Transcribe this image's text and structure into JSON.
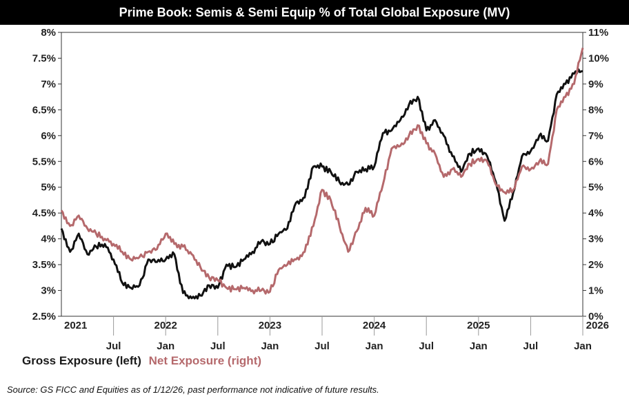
{
  "title": "Prime Book: Semis & Semi Equip % of Total Global Exposure (MV)",
  "legend": {
    "gross": "Gross Exposure (left)",
    "net": "Net Exposure (right)"
  },
  "source": "Source: GS FICC and Equities as of 1/12/26, past performance not indicative of future results.",
  "colors": {
    "gross": "#111111",
    "net": "#b5696c"
  },
  "chart_data": {
    "type": "line",
    "x_range": [
      "2021-01",
      "2026-01"
    ],
    "x_tick_labels": [
      "Jul",
      "Jan",
      "Jul",
      "Jan",
      "Jul",
      "Jan",
      "Jul",
      "Jan",
      "Jul",
      "Jan"
    ],
    "x_tick_dates": [
      "2021-07",
      "2022-01",
      "2022-07",
      "2023-01",
      "2023-07",
      "2024-01",
      "2024-07",
      "2025-01",
      "2025-07",
      "2026-01"
    ],
    "year_labels": [
      "2021",
      "2022",
      "2023",
      "2024",
      "2025",
      "2026"
    ],
    "year_dates": [
      "2021-01",
      "2022-01",
      "2023-01",
      "2024-01",
      "2025-01",
      "2026-01"
    ],
    "y_left": {
      "min": 2.5,
      "max": 8,
      "ticks": [
        "2.5%",
        "3%",
        "3.5%",
        "4%",
        "4.5%",
        "5%",
        "5.5%",
        "6%",
        "6.5%",
        "7%",
        "7.5%",
        "8%"
      ]
    },
    "y_right": {
      "min": 0,
      "max": 11,
      "ticks": [
        "0%",
        "1%",
        "2%",
        "3%",
        "4%",
        "5%",
        "6%",
        "7%",
        "8%",
        "9%",
        "10%",
        "11%"
      ]
    },
    "series": [
      {
        "name": "Gross Exposure (left)",
        "axis": "left",
        "points": [
          [
            "2021-01",
            4.2
          ],
          [
            "2021-02",
            3.75
          ],
          [
            "2021-03",
            4.1
          ],
          [
            "2021-04",
            3.7
          ],
          [
            "2021-05",
            3.85
          ],
          [
            "2021-06",
            3.9
          ],
          [
            "2021-07",
            3.6
          ],
          [
            "2021-08",
            3.15
          ],
          [
            "2021-09",
            3.05
          ],
          [
            "2021-10",
            3.1
          ],
          [
            "2021-11",
            3.6
          ],
          [
            "2021-12",
            3.55
          ],
          [
            "2022-01",
            3.6
          ],
          [
            "2022-02",
            3.7
          ],
          [
            "2022-03",
            2.95
          ],
          [
            "2022-04",
            2.85
          ],
          [
            "2022-05",
            2.9
          ],
          [
            "2022-06",
            3.1
          ],
          [
            "2022-07",
            3.05
          ],
          [
            "2022-08",
            3.5
          ],
          [
            "2022-09",
            3.45
          ],
          [
            "2022-10",
            3.6
          ],
          [
            "2022-11",
            3.75
          ],
          [
            "2022-12",
            3.95
          ],
          [
            "2023-01",
            3.9
          ],
          [
            "2023-02",
            4.1
          ],
          [
            "2023-03",
            4.2
          ],
          [
            "2023-04",
            4.7
          ],
          [
            "2023-05",
            4.8
          ],
          [
            "2023-06",
            5.4
          ],
          [
            "2023-07",
            5.4
          ],
          [
            "2023-08",
            5.3
          ],
          [
            "2023-09",
            5.1
          ],
          [
            "2023-10",
            5.05
          ],
          [
            "2023-11",
            5.3
          ],
          [
            "2023-12",
            5.35
          ],
          [
            "2024-01",
            5.4
          ],
          [
            "2024-02",
            6.05
          ],
          [
            "2024-03",
            6.1
          ],
          [
            "2024-04",
            6.3
          ],
          [
            "2024-05",
            6.6
          ],
          [
            "2024-06",
            6.75
          ],
          [
            "2024-07",
            6.1
          ],
          [
            "2024-08",
            6.3
          ],
          [
            "2024-09",
            6.0
          ],
          [
            "2024-10",
            5.6
          ],
          [
            "2024-11",
            5.3
          ],
          [
            "2024-12",
            5.65
          ],
          [
            "2025-01",
            5.75
          ],
          [
            "2025-02",
            5.6
          ],
          [
            "2025-03",
            5.1
          ],
          [
            "2025-04",
            4.35
          ],
          [
            "2025-05",
            4.9
          ],
          [
            "2025-06",
            5.6
          ],
          [
            "2025-07",
            5.7
          ],
          [
            "2025-08",
            6.0
          ],
          [
            "2025-09",
            5.9
          ],
          [
            "2025-10",
            6.8
          ],
          [
            "2025-11",
            7.0
          ],
          [
            "2025-12",
            7.2
          ],
          [
            "2026-01",
            7.25
          ]
        ]
      },
      {
        "name": "Net Exposure (right)",
        "axis": "right",
        "points": [
          [
            "2021-01",
            4.1
          ],
          [
            "2021-02",
            3.5
          ],
          [
            "2021-03",
            3.9
          ],
          [
            "2021-04",
            3.4
          ],
          [
            "2021-05",
            3.2
          ],
          [
            "2021-06",
            3.0
          ],
          [
            "2021-07",
            2.8
          ],
          [
            "2021-08",
            2.5
          ],
          [
            "2021-09",
            2.2
          ],
          [
            "2021-10",
            2.3
          ],
          [
            "2021-11",
            2.5
          ],
          [
            "2021-12",
            2.6
          ],
          [
            "2022-01",
            3.2
          ],
          [
            "2022-02",
            2.8
          ],
          [
            "2022-03",
            2.7
          ],
          [
            "2022-04",
            2.4
          ],
          [
            "2022-05",
            1.9
          ],
          [
            "2022-06",
            1.5
          ],
          [
            "2022-07",
            1.4
          ],
          [
            "2022-08",
            1.1
          ],
          [
            "2022-09",
            1.05
          ],
          [
            "2022-10",
            1.1
          ],
          [
            "2022-11",
            1.0
          ],
          [
            "2022-12",
            1.0
          ],
          [
            "2023-01",
            0.95
          ],
          [
            "2023-02",
            1.8
          ],
          [
            "2023-03",
            2.0
          ],
          [
            "2023-04",
            2.2
          ],
          [
            "2023-05",
            2.5
          ],
          [
            "2023-06",
            3.5
          ],
          [
            "2023-07",
            4.9
          ],
          [
            "2023-08",
            4.5
          ],
          [
            "2023-09",
            3.5
          ],
          [
            "2023-10",
            2.5
          ],
          [
            "2023-11",
            3.3
          ],
          [
            "2023-12",
            4.2
          ],
          [
            "2024-01",
            3.9
          ],
          [
            "2024-02",
            5.1
          ],
          [
            "2024-03",
            6.5
          ],
          [
            "2024-04",
            6.6
          ],
          [
            "2024-05",
            7.0
          ],
          [
            "2024-06",
            7.4
          ],
          [
            "2024-07",
            6.7
          ],
          [
            "2024-08",
            6.3
          ],
          [
            "2024-09",
            5.4
          ],
          [
            "2024-10",
            5.7
          ],
          [
            "2024-11",
            5.4
          ],
          [
            "2024-12",
            5.9
          ],
          [
            "2025-01",
            6.1
          ],
          [
            "2025-02",
            6.0
          ],
          [
            "2025-03",
            5.1
          ],
          [
            "2025-04",
            4.8
          ],
          [
            "2025-05",
            4.9
          ],
          [
            "2025-06",
            5.8
          ],
          [
            "2025-07",
            5.7
          ],
          [
            "2025-08",
            6.0
          ],
          [
            "2025-09",
            5.9
          ],
          [
            "2025-10",
            8.0
          ],
          [
            "2025-11",
            8.5
          ],
          [
            "2025-12",
            9.0
          ],
          [
            "2026-01",
            10.4
          ]
        ]
      }
    ]
  }
}
